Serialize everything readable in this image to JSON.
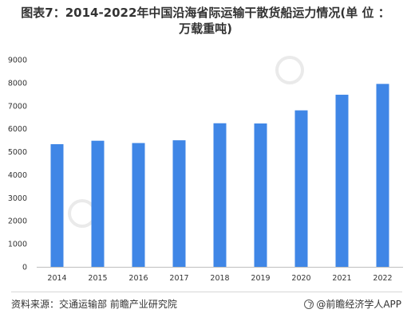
{
  "title_line1": "图表7：2014-2022年中国沿海省际运输干散货船运力情况(单 位 ：",
  "title_line2": "万载重吨)",
  "source": "资料来源：交通运输部 前瞻产业研究院",
  "brand": "@前瞻经济学人APP",
  "colors": {
    "bar": "#3f86e6",
    "axis": "#bfbfbf",
    "text": "#333333"
  },
  "chart_data": {
    "type": "bar",
    "categories": [
      "2014",
      "2015",
      "2016",
      "2017",
      "2018",
      "2019",
      "2020",
      "2021",
      "2022"
    ],
    "values": [
      5330,
      5480,
      5380,
      5500,
      6240,
      6230,
      6800,
      7480,
      7950
    ],
    "yticks": [
      "0",
      "1000",
      "2000",
      "3000",
      "4000",
      "5000",
      "6000",
      "7000",
      "8000",
      "9000"
    ],
    "ylim": [
      0,
      9000
    ],
    "grid": false,
    "legend": "none"
  }
}
